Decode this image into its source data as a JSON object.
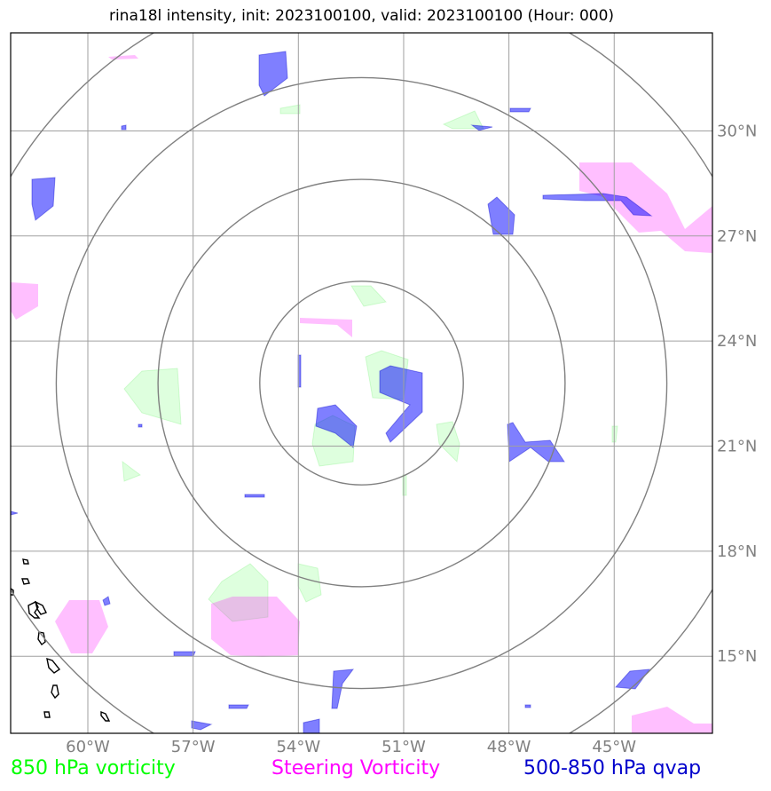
{
  "title": "rina18l intensity, init: 2023100100, valid: 2023100100 (Hour: 000)",
  "colors": {
    "vorticity_850": "#00ff00",
    "steering_vorticity": "#ff00ff",
    "qvap_500_850": "#0000cc",
    "grid": "#a0a0a0",
    "range_rings": "#808080",
    "coastline": "#000000"
  },
  "map": {
    "lon_range": [
      -62.2,
      -42.2
    ],
    "lat_range": [
      12.8,
      32.8
    ],
    "center": {
      "lon": -52.2,
      "lat": 22.8
    },
    "range_ring_radii_deg": [
      2.9,
      5.8,
      8.7,
      11.6
    ],
    "lon_ticks": [
      {
        "value": -60,
        "label": "60°W"
      },
      {
        "value": -57,
        "label": "57°W"
      },
      {
        "value": -54,
        "label": "54°W"
      },
      {
        "value": -51,
        "label": "51°W"
      },
      {
        "value": -48,
        "label": "48°W"
      },
      {
        "value": -45,
        "label": "45°W"
      }
    ],
    "lat_ticks": [
      {
        "value": 30,
        "label": "30°N"
      },
      {
        "value": 27,
        "label": "27°N"
      },
      {
        "value": 24,
        "label": "24°N"
      },
      {
        "value": 21,
        "label": "21°N"
      },
      {
        "value": 18,
        "label": "18°N"
      },
      {
        "value": 15,
        "label": "15°N"
      }
    ]
  },
  "legend": {
    "green": "850 hPa vorticity",
    "magenta": "Steering Vorticity",
    "blue": "500-850 hPa qvap"
  }
}
